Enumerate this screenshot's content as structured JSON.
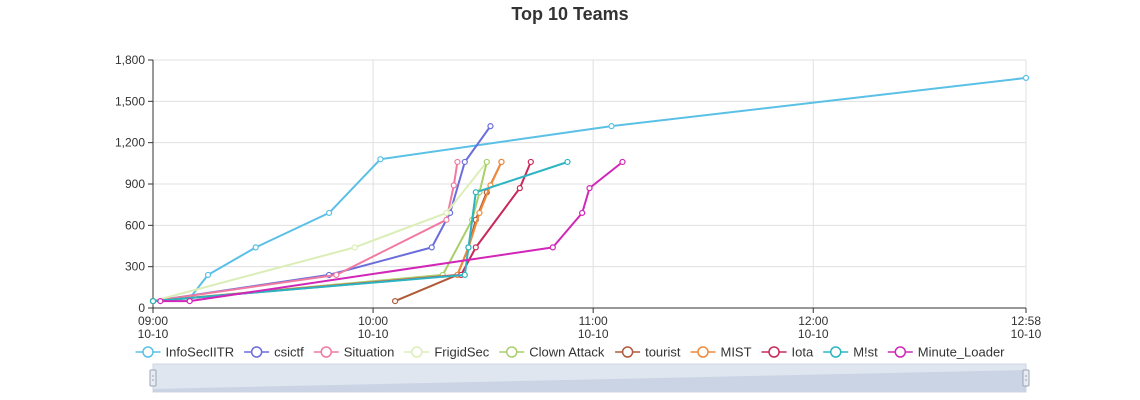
{
  "chart_data": {
    "type": "line",
    "title": "Top 10 Teams",
    "xlabel": "",
    "ylabel": "",
    "x_axis": {
      "type": "time",
      "min": "10-10 09:00",
      "max": "10-10 12:58",
      "ticks": [
        {
          "time": "09:00",
          "date": "10-10"
        },
        {
          "time": "10:00",
          "date": "10-10"
        },
        {
          "time": "11:00",
          "date": "10-10"
        },
        {
          "time": "12:00",
          "date": "10-10"
        },
        {
          "time": "12:58",
          "date": "10-10"
        }
      ]
    },
    "y_axis": {
      "min": 0,
      "max": 1800,
      "ticks": [
        "0",
        "300",
        "600",
        "900",
        "1,200",
        "1,500",
        "1,800"
      ],
      "grid": true
    },
    "legend_position": "bottom",
    "has_zoom_slider": true,
    "series": [
      {
        "name": "InfoSecIITR",
        "color": "#5bc0e6",
        "points": [
          [
            "09:00",
            50
          ],
          [
            "09:10",
            70
          ],
          [
            "09:15",
            240
          ],
          [
            "09:28",
            440
          ],
          [
            "09:48",
            690
          ],
          [
            "10:02",
            1080
          ],
          [
            "11:05",
            1320
          ],
          [
            "12:58",
            1670
          ]
        ]
      },
      {
        "name": "csictf",
        "color": "#6a6ddb",
        "points": [
          [
            "09:00",
            50
          ],
          [
            "09:48",
            240
          ],
          [
            "10:16",
            440
          ],
          [
            "10:21",
            690
          ],
          [
            "10:25",
            1060
          ],
          [
            "10:32",
            1320
          ]
        ]
      },
      {
        "name": "Situation",
        "color": "#f07aa0",
        "points": [
          [
            "09:00",
            50
          ],
          [
            "09:50",
            240
          ],
          [
            "10:20",
            640
          ],
          [
            "10:22",
            890
          ],
          [
            "10:23",
            1060
          ]
        ]
      },
      {
        "name": "FrigidSec",
        "color": "#dceeb8",
        "points": [
          [
            "09:00",
            50
          ],
          [
            "09:55",
            440
          ],
          [
            "10:20",
            690
          ],
          [
            "10:31",
            1060
          ]
        ]
      },
      {
        "name": "Clown Attack",
        "color": "#a9cf6a",
        "points": [
          [
            "09:00",
            50
          ],
          [
            "10:19",
            240
          ],
          [
            "10:27",
            640
          ],
          [
            "10:29",
            840
          ],
          [
            "10:31",
            1060
          ]
        ]
      },
      {
        "name": "tourist",
        "color": "#b05a3a",
        "points": [
          [
            "10:06",
            50
          ],
          [
            "10:23",
            240
          ],
          [
            "10:26",
            440
          ],
          [
            "10:28",
            640
          ],
          [
            "10:31",
            840
          ],
          [
            "10:35",
            1060
          ]
        ]
      },
      {
        "name": "MIST",
        "color": "#f08a3a",
        "points": [
          [
            "09:00",
            50
          ],
          [
            "10:23",
            240
          ],
          [
            "10:26",
            440
          ],
          [
            "10:29",
            690
          ],
          [
            "10:32",
            890
          ],
          [
            "10:35",
            1060
          ]
        ]
      },
      {
        "name": "Iota",
        "color": "#c8285a",
        "points": [
          [
            "09:00",
            50
          ],
          [
            "10:24",
            240
          ],
          [
            "10:28",
            440
          ],
          [
            "10:40",
            870
          ],
          [
            "10:43",
            1060
          ]
        ]
      },
      {
        "name": "M!st",
        "color": "#2bb5c2",
        "points": [
          [
            "09:00",
            50
          ],
          [
            "10:25",
            240
          ],
          [
            "10:26",
            440
          ],
          [
            "10:28",
            840
          ],
          [
            "10:53",
            1060
          ]
        ]
      },
      {
        "name": "Minute_Loader",
        "color": "#d126b8",
        "points": [
          [
            "09:02",
            50
          ],
          [
            "09:10",
            50
          ],
          [
            "10:49",
            440
          ],
          [
            "10:57",
            690
          ],
          [
            "10:59",
            870
          ],
          [
            "11:08",
            1060
          ]
        ]
      }
    ]
  }
}
